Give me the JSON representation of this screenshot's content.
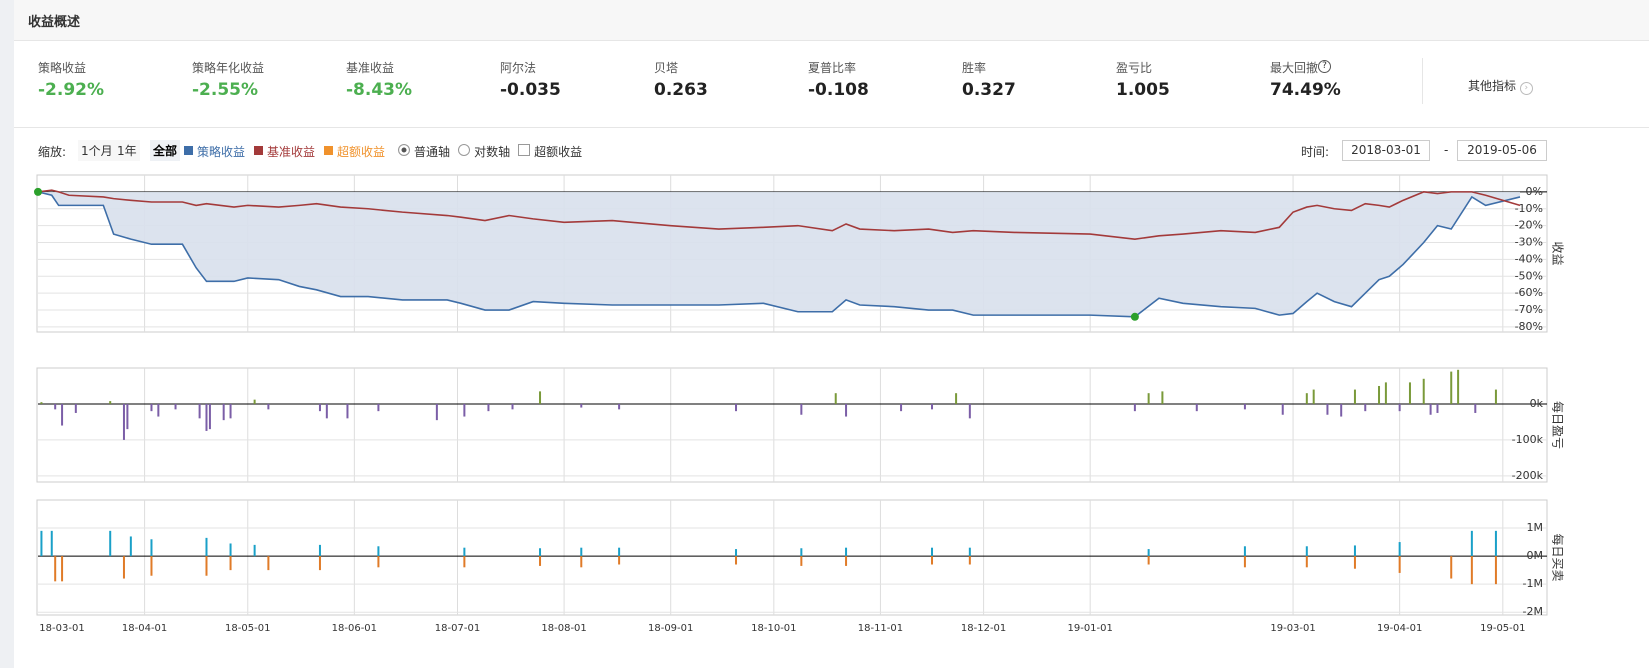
{
  "header": {
    "title": "收益概述"
  },
  "metrics": [
    {
      "label": "策略收益",
      "value": "-2.92%"
    },
    {
      "label": "策略年化收益",
      "value": "-2.55%"
    },
    {
      "label": "基准收益",
      "value": "-8.43%"
    },
    {
      "label": "阿尔法",
      "value": "-0.035"
    },
    {
      "label": "贝塔",
      "value": "0.263"
    },
    {
      "label": "夏普比率",
      "value": "-0.108"
    },
    {
      "label": "胜率",
      "value": "0.327"
    },
    {
      "label": "盈亏比",
      "value": "1.005"
    },
    {
      "label": "最大回撤",
      "value": "74.49%"
    }
  ],
  "more": "其他指标",
  "controls": {
    "zoom_label": "缩放:",
    "zoom": [
      "1个月",
      "1年",
      "全部"
    ],
    "legend": [
      {
        "label": "超额收益",
        "color": "#f0922c"
      }
    ],
    "radios": [
      {
        "label": "普通轴",
        "checked": true
      },
      {
        "label": "对数轴",
        "checked": false
      }
    ],
    "checkbox": {
      "label": "超额收益",
      "checked": false
    },
    "time_label": "时间:",
    "start": "2018-03-01",
    "dash": "-",
    "end": "2019-05-06"
  },
  "chart_data": [
    {
      "type": "line",
      "y_label": "收益",
      "xlim": [
        "18-03-01",
        "19-05-06"
      ],
      "ylim": [
        -83,
        10
      ],
      "yticks": [
        {
          "value": 0,
          "label": "0%"
        },
        {
          "value": -10,
          "label": "-10%"
        },
        {
          "value": -20,
          "label": "-20%"
        },
        {
          "value": -30,
          "label": "-30%"
        },
        {
          "value": -40,
          "label": "-40%"
        },
        {
          "value": -50,
          "label": "-50%"
        },
        {
          "value": -60,
          "label": "-60%"
        },
        {
          "value": -70,
          "label": "-70%"
        },
        {
          "value": -80,
          "label": "-80%"
        }
      ],
      "x": [
        "18-03-01",
        "18-03-05",
        "18-03-07",
        "18-03-10",
        "18-03-20",
        "18-03-23",
        "18-03-28",
        "18-04-03",
        "18-04-12",
        "18-04-16",
        "18-04-19",
        "18-04-27",
        "18-05-01",
        "18-05-10",
        "18-05-16",
        "18-05-21",
        "18-05-28",
        "18-06-05",
        "18-06-15",
        "18-06-28",
        "18-07-02",
        "18-07-09",
        "18-07-16",
        "18-07-23",
        "18-08-01",
        "18-08-15",
        "18-09-01",
        "18-09-15",
        "18-09-28",
        "18-10-08",
        "18-10-18",
        "18-10-22",
        "18-10-26",
        "18-11-05",
        "18-11-15",
        "18-11-22",
        "18-11-28",
        "18-12-10",
        "19-01-01",
        "19-01-14",
        "19-01-21",
        "19-01-28",
        "19-02-08",
        "19-02-18",
        "19-02-25",
        "19-03-01",
        "19-03-05",
        "19-03-08",
        "19-03-13",
        "19-03-18",
        "19-03-22",
        "19-03-26",
        "19-03-29",
        "19-04-02",
        "19-04-08",
        "19-04-12",
        "19-04-16",
        "19-04-22",
        "19-04-26",
        "19-05-06"
      ],
      "series": [
        {
          "name": "策略收益",
          "color": "#3e6ea8",
          "fill": "#d8e0ec",
          "values": [
            0,
            -2,
            -8,
            -8,
            -8,
            -25,
            -28,
            -31,
            -31,
            -45,
            -53,
            -53,
            -51,
            -52,
            -56,
            -58,
            -62,
            -62,
            -64,
            -64,
            -66,
            -70,
            -70,
            -65,
            -66,
            -67,
            -67,
            -67,
            -66,
            -71,
            -71,
            -64,
            -67,
            -68,
            -70,
            -70,
            -73,
            -73,
            -73,
            -74,
            -63,
            -66,
            -68,
            -69,
            -73,
            -72,
            -65,
            -60,
            -65,
            -68,
            -60,
            -52,
            -50,
            -43,
            -30,
            -20,
            -22,
            -3,
            -8,
            -3
          ]
        },
        {
          "name": "基准收益",
          "color": "#a33a3a",
          "values": [
            0,
            1,
            0,
            -2,
            -3,
            -4,
            -5,
            -6,
            -6,
            -8,
            -7,
            -9,
            -8,
            -9,
            -8,
            -7,
            -9,
            -10,
            -12,
            -14,
            -15,
            -17,
            -14,
            -16,
            -18,
            -17,
            -20,
            -22,
            -21,
            -20,
            -23,
            -19,
            -22,
            -23,
            -22,
            -24,
            -23,
            -24,
            -25,
            -28,
            -26,
            -25,
            -23,
            -24,
            -21,
            -12,
            -9,
            -8,
            -10,
            -11,
            -7,
            -8,
            -9,
            -5,
            0,
            -1,
            0,
            0,
            -2,
            -8
          ]
        }
      ],
      "markers": {
        "color": "#2ca02c",
        "x": [
          "18-03-01",
          "19-01-14"
        ],
        "values": [
          0,
          -74
        ]
      }
    },
    {
      "type": "bar",
      "y_label": "每日盈亏",
      "xlim": [
        "18-03-01",
        "19-05-06"
      ],
      "ylim": [
        -217000,
        100000
      ],
      "yticks": [
        {
          "value": 0,
          "label": "0k"
        },
        {
          "value": -100000,
          "label": "-100k"
        },
        {
          "value": -200000,
          "label": "-200k"
        }
      ],
      "positive_color": "#7a9a3a",
      "negative_color": "#7b5ea7",
      "x": [
        "18-03-02",
        "18-03-06",
        "18-03-08",
        "18-03-12",
        "18-03-22",
        "18-03-26",
        "18-03-27",
        "18-04-03",
        "18-04-05",
        "18-04-10",
        "18-04-17",
        "18-04-19",
        "18-04-20",
        "18-04-24",
        "18-04-26",
        "18-05-03",
        "18-05-07",
        "18-05-22",
        "18-05-24",
        "18-05-30",
        "18-06-08",
        "18-06-25",
        "18-07-03",
        "18-07-10",
        "18-07-17",
        "18-07-25",
        "18-08-06",
        "18-08-17",
        "18-09-20",
        "18-10-09",
        "18-10-19",
        "18-10-22",
        "18-11-07",
        "18-11-16",
        "18-11-23",
        "18-11-27",
        "19-01-14",
        "19-01-18",
        "19-01-22",
        "19-02-01",
        "19-02-15",
        "19-02-26",
        "19-03-05",
        "19-03-07",
        "19-03-11",
        "19-03-15",
        "19-03-19",
        "19-03-22",
        "19-03-26",
        "19-03-28",
        "19-04-01",
        "19-04-04",
        "19-04-08",
        "19-04-10",
        "19-04-12",
        "19-04-16",
        "19-04-18",
        "19-04-23",
        "19-04-29"
      ],
      "values": [
        5000,
        -15000,
        -60000,
        -25000,
        8000,
        -100000,
        -70000,
        -20000,
        -35000,
        -15000,
        -40000,
        -75000,
        -70000,
        -45000,
        -40000,
        12000,
        -15000,
        -20000,
        -40000,
        -40000,
        -20000,
        -45000,
        -35000,
        -20000,
        -15000,
        35000,
        -10000,
        -15000,
        -20000,
        -30000,
        30000,
        -35000,
        -20000,
        -15000,
        30000,
        -40000,
        -20000,
        30000,
        35000,
        -20000,
        -15000,
        -30000,
        30000,
        40000,
        -30000,
        -35000,
        40000,
        -20000,
        50000,
        60000,
        -20000,
        60000,
        70000,
        -30000,
        -25000,
        90000,
        95000,
        -25000,
        40000
      ]
    },
    {
      "type": "bar",
      "y_label": "每日买卖",
      "xlim": [
        "18-03-01",
        "19-05-06"
      ],
      "ylim": [
        -2100000,
        2000000
      ],
      "yticks": [
        {
          "value": 1000000,
          "label": "1M"
        },
        {
          "value": 0,
          "label": "0M"
        },
        {
          "value": -1000000,
          "label": "-1M"
        },
        {
          "value": -2000000,
          "label": "-2M"
        }
      ],
      "x": [
        "18-03-02",
        "18-03-05",
        "18-03-06",
        "18-03-08",
        "18-03-22",
        "18-03-26",
        "18-03-28",
        "18-04-03",
        "18-04-19",
        "18-04-26",
        "18-05-03",
        "18-05-07",
        "18-05-22",
        "18-06-08",
        "18-07-03",
        "18-07-25",
        "18-08-06",
        "18-08-17",
        "18-09-20",
        "18-10-09",
        "18-10-22",
        "18-11-16",
        "18-11-27",
        "19-01-18",
        "19-02-15",
        "19-03-05",
        "19-03-19",
        "19-04-01",
        "19-04-16",
        "19-04-22",
        "19-04-29"
      ],
      "series": [
        {
          "color": "#1aa0c8",
          "values": [
            900000,
            900000,
            null,
            null,
            900000,
            null,
            700000,
            600000,
            650000,
            450000,
            400000,
            null,
            400000,
            350000,
            300000,
            280000,
            300000,
            300000,
            250000,
            280000,
            300000,
            300000,
            300000,
            250000,
            350000,
            350000,
            380000,
            500000,
            null,
            900000,
            900000
          ]
        },
        {
          "color": "#e07b28",
          "values": [
            null,
            null,
            -900000,
            -900000,
            null,
            -800000,
            null,
            -700000,
            -700000,
            -500000,
            null,
            -500000,
            -500000,
            -400000,
            -400000,
            -350000,
            -400000,
            -300000,
            -300000,
            -350000,
            -350000,
            -300000,
            -300000,
            -300000,
            -400000,
            -400000,
            -450000,
            -600000,
            -800000,
            -1000000,
            -1000000
          ]
        }
      ]
    }
  ],
  "xticks": [
    "18-03-01",
    "18-04-01",
    "18-05-01",
    "18-06-01",
    "18-07-01",
    "18-08-01",
    "18-09-01",
    "18-10-01",
    "18-11-01",
    "18-12-01",
    "19-01-01",
    "19-03-01",
    "19-04-01",
    "19-05-01"
  ]
}
